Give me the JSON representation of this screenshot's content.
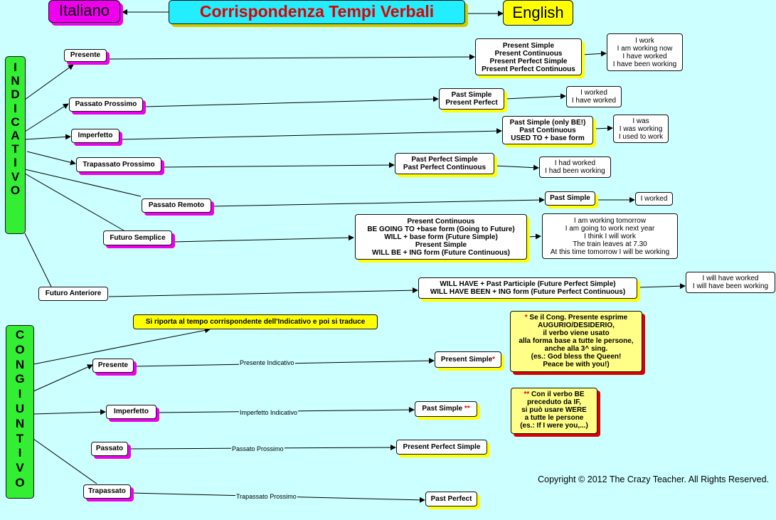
{
  "title": "Corrispondenza Tempi Verbali",
  "lang_left": "Italiano",
  "lang_right": "English",
  "indicativo_label": "I\nN\nD\nI\nC\nA\nT\nI\nV\nO",
  "congiuntivo_label": "C\nO\nN\nG\nI\nU\nN\nT\nI\nV\nO",
  "indicativo": {
    "presente": {
      "it": "Presente",
      "en": "Present Simple\nPresent Continuous\nPresent Perfect Simple\nPresent Perfect Continuous",
      "ex": "I work\nI am working now\nI have worked\nI have been working"
    },
    "passato_prossimo": {
      "it": "Passato Prossimo",
      "en": "Past Simple\nPresent Perfect",
      "ex": "I worked\nI have worked"
    },
    "imperfetto": {
      "it": "Imperfetto",
      "en": "Past Simple (only BE!)\nPast Continuous\nUSED TO + base form",
      "ex": "I was\nI was working\nI used to work"
    },
    "trapassato_prossimo": {
      "it": "Trapassato Prossimo",
      "en": "Past Perfect Simple\nPast Perfect Continuous",
      "ex": "I had worked\nI had been working"
    },
    "passato_remoto": {
      "it": "Passato Remoto",
      "en": "Past Simple",
      "ex": "I worked"
    },
    "futuro_semplice": {
      "it": "Futuro Semplice",
      "en": "Present Continuous\nBE GOING TO +base form (Going to Future)\nWILL + base form (Future Simple)\nPresent Simple\nWILL BE + ING form (Future Continuous)",
      "ex": "I am working tomorrow\nI am going to work next year\nI think I will work\nThe train leaves at 7.30\nAt this time tomorrow I will be working"
    },
    "futuro_anteriore": {
      "it": "Futuro Anteriore",
      "en": "WILL HAVE + Past Participle (Future Perfect Simple)\nWILL HAVE BEEN + ING form (Future Perfect Continuous)",
      "ex": "I will have worked\nI will have been working"
    }
  },
  "congiuntivo": {
    "rule": "Si riporta al tempo corrispondente dell'Indicativo e poi si traduce",
    "presente": {
      "it": "Presente",
      "edge": "Presente Indicativo",
      "en": "Present Simple",
      "star": "*"
    },
    "imperfetto": {
      "it": "Imperfetto",
      "edge": "Imperfetto Indicativo",
      "en": "Past Simple ",
      "star": "**"
    },
    "passato": {
      "it": "Passato",
      "edge": "Passato Prossimo",
      "en": "Present Perfect Simple"
    },
    "trapassato": {
      "it": "Trapassato",
      "edge": "Trapassato Prossimo",
      "en": "Past Perfect"
    }
  },
  "notes": {
    "note1_star": "*",
    "note1": " Se il Cong. Presente esprime\nAUGURIO/DESIDERIO,\nil verbo viene usato\nalla forma base a tutte le persone,\nanche alla 3^ sing.\n(es.: God bless the Queen!\nPeace be with you!)",
    "note2_star": "**",
    "note2": " Con il verbo BE\npreceduto da IF,\nsi può usare WERE\na tutte le persone\n(es.: If I were you,...)"
  },
  "copyright": "Copyright © 2012 The Crazy Teacher. All Rights Reserved.",
  "colors": {
    "background": "#ccffff",
    "title": "#dd0000",
    "title_bg": "#22eeff",
    "italiano_bg": "#ee00ee",
    "english_bg": "#ffff00",
    "mood_bg": "#33ee33"
  }
}
